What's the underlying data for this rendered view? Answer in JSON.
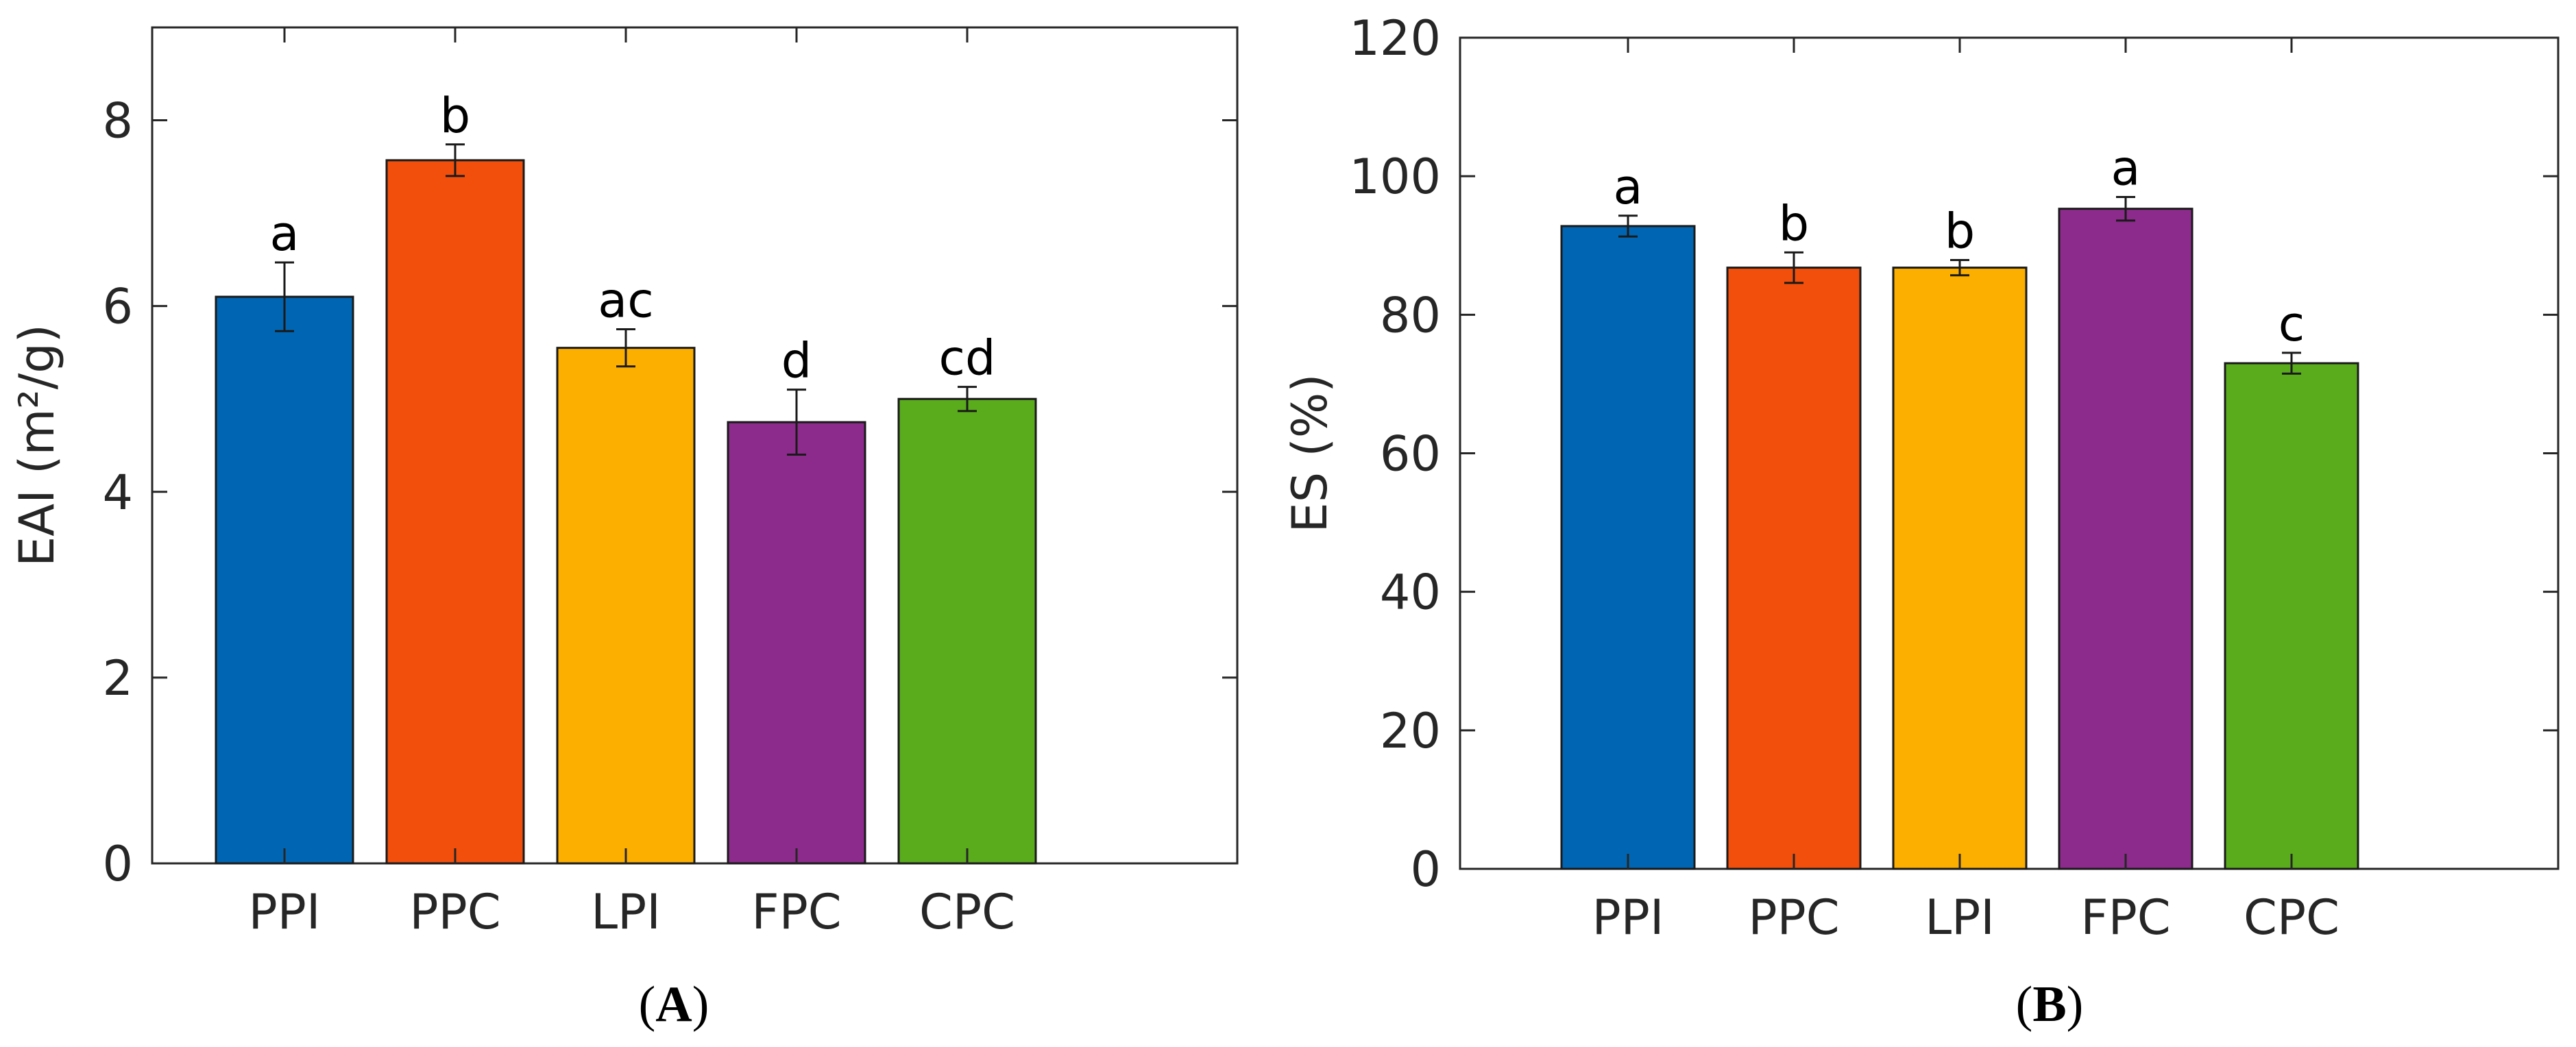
{
  "chart_data": [
    {
      "type": "bar",
      "panel_label": {
        "open": "(",
        "letter": "A",
        "close": ")"
      },
      "categories": [
        "PPI",
        "PPC",
        "LPI",
        "FPC",
        "CPC"
      ],
      "values": [
        6.1,
        7.57,
        5.55,
        4.75,
        5.0
      ],
      "errors": [
        0.37,
        0.17,
        0.2,
        0.35,
        0.13
      ],
      "significance": [
        "a",
        "b",
        "ac",
        "d",
        "cd"
      ],
      "colors": [
        "#0066b3",
        "#f24f0c",
        "#fdaf00",
        "#8c2b8c",
        "#5aac1d"
      ],
      "title": "",
      "xlabel": "",
      "ylabel": "EAI (m²/g)",
      "ylim": [
        0,
        9
      ],
      "yticks": [
        0,
        2,
        4,
        6,
        8
      ],
      "grid": false
    },
    {
      "type": "bar",
      "panel_label": {
        "open": "(",
        "letter": "B",
        "close": ")"
      },
      "categories": [
        "PPI",
        "PPC",
        "LPI",
        "FPC",
        "CPC"
      ],
      "values": [
        92.8,
        86.8,
        86.8,
        95.3,
        73.0
      ],
      "errors": [
        1.5,
        2.2,
        1.1,
        1.7,
        1.5
      ],
      "significance": [
        "a",
        "b",
        "b",
        "a",
        "c"
      ],
      "colors": [
        "#0066b3",
        "#f24f0c",
        "#fdaf00",
        "#8c2b8c",
        "#5aac1d"
      ],
      "title": "",
      "xlabel": "",
      "ylabel": "ES (%)",
      "ylim": [
        0,
        120
      ],
      "yticks": [
        0,
        20,
        40,
        60,
        80,
        100,
        120
      ],
      "grid": false
    }
  ]
}
